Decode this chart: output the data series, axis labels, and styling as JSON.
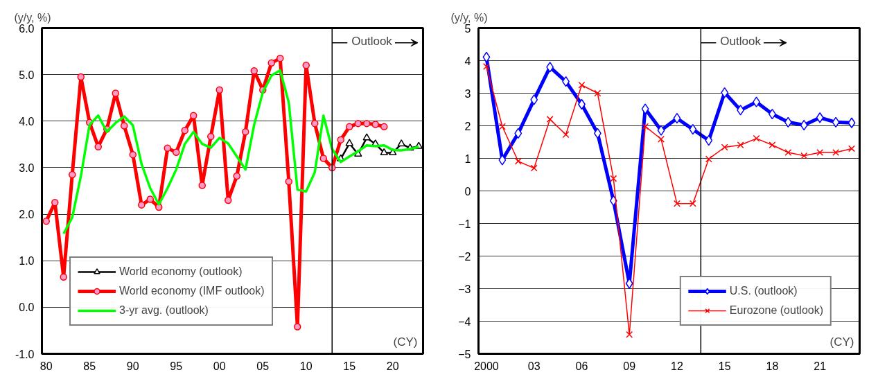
{
  "chart_data": [
    {
      "type": "line",
      "ylabel": "(y/y, %)",
      "annotations": [
        "(CY)"
      ],
      "xlim": [
        1979.5,
        2023.5
      ],
      "xticks": [
        {
          "value": 1980,
          "label": "80"
        },
        {
          "value": 1985,
          "label": "85"
        },
        {
          "value": 1990,
          "label": "90"
        },
        {
          "value": 1995,
          "label": "95"
        },
        {
          "value": 2000,
          "label": "00"
        },
        {
          "value": 2005,
          "label": "05"
        },
        {
          "value": 2010,
          "label": "10"
        },
        {
          "value": 2015,
          "label": "15"
        },
        {
          "value": 2020,
          "label": "20"
        }
      ],
      "ylim": [
        -1.0,
        6.0
      ],
      "yticks": [
        {
          "value": -1,
          "label": "-1.0"
        },
        {
          "value": 0,
          "label": "0.0"
        },
        {
          "value": 1,
          "label": "1.0"
        },
        {
          "value": 2,
          "label": "2.0"
        },
        {
          "value": 3,
          "label": "3.0"
        },
        {
          "value": 4,
          "label": "4.0"
        },
        {
          "value": 5,
          "label": "5.0"
        },
        {
          "value": 6,
          "label": "6.0"
        }
      ],
      "grid": "y",
      "legend": "bottom left",
      "ref_lines": [
        {
          "axis": "x",
          "value": 2013,
          "label": "Outlook"
        }
      ],
      "series": [
        {
          "name": "World economy (outlook)",
          "color": "#000000",
          "marker": "triangle",
          "x": [
            2014,
            2015,
            2016,
            2017,
            2018,
            2019,
            2020,
            2021,
            2022,
            2023
          ],
          "values": [
            3.19,
            3.52,
            3.29,
            3.64,
            3.51,
            3.32,
            3.32,
            3.51,
            3.42,
            3.46
          ]
        },
        {
          "name": "World economy (IMF outlook)",
          "color": "#ff0000",
          "marker": "circle",
          "x": [
            1980,
            1981,
            1982,
            1983,
            1984,
            1985,
            1986,
            1987,
            1988,
            1989,
            1990,
            1991,
            1992,
            1993,
            1994,
            1995,
            1996,
            1997,
            1998,
            1999,
            2000,
            2001,
            2002,
            2003,
            2004,
            2005,
            2006,
            2007,
            2008,
            2009,
            2010,
            2011,
            2012,
            2013,
            2014,
            2015,
            2016,
            2017,
            2018,
            2019
          ],
          "values": [
            1.85,
            2.25,
            0.65,
            2.85,
            4.95,
            3.97,
            3.45,
            3.83,
            4.6,
            3.9,
            3.28,
            2.2,
            2.32,
            2.15,
            3.42,
            3.33,
            3.8,
            4.12,
            2.62,
            3.67,
            4.67,
            2.3,
            2.82,
            3.77,
            5.08,
            4.67,
            5.25,
            5.35,
            2.7,
            -0.42,
            5.2,
            3.95,
            3.2,
            3.0,
            3.6,
            3.88,
            3.95,
            3.95,
            3.93,
            3.88
          ]
        },
        {
          "name": "3-yr avg. (outlook)",
          "color": "#00ff00",
          "marker": "none",
          "x": [
            1982,
            1983,
            1984,
            1985,
            1986,
            1987,
            1988,
            1989,
            1990,
            1991,
            1992,
            1993,
            1994,
            1995,
            1996,
            1997,
            1998,
            1999,
            2000,
            2001,
            2002,
            2003,
            2004,
            2005,
            2006,
            2007,
            2008,
            2009,
            2010,
            2011,
            2012,
            2013,
            2014,
            2015,
            2016,
            2017,
            2018,
            2019,
            2020,
            2021,
            2022,
            2023
          ],
          "values": [
            1.58,
            1.93,
            2.82,
            3.92,
            4.12,
            3.77,
            3.96,
            4.1,
            3.91,
            3.08,
            2.56,
            2.21,
            2.56,
            2.96,
            3.51,
            3.77,
            3.51,
            3.43,
            3.64,
            3.52,
            3.24,
            2.96,
            3.92,
            4.62,
            4.98,
            5.09,
            4.4,
            2.53,
            2.49,
            2.9,
            4.12,
            3.4,
            3.12,
            3.24,
            3.35,
            3.48,
            3.46,
            3.48,
            3.38,
            3.37,
            3.4,
            3.45
          ]
        }
      ]
    },
    {
      "type": "line",
      "ylabel": "(y/y, %)",
      "annotations": [
        "(CY)"
      ],
      "xlim": [
        1999.5,
        2023.5
      ],
      "xticks": [
        {
          "value": 2000,
          "label": "2000"
        },
        {
          "value": 2003,
          "label": "03"
        },
        {
          "value": 2006,
          "label": "06"
        },
        {
          "value": 2009,
          "label": "09"
        },
        {
          "value": 2012,
          "label": "12"
        },
        {
          "value": 2015,
          "label": "15"
        },
        {
          "value": 2018,
          "label": "18"
        },
        {
          "value": 2021,
          "label": "21"
        }
      ],
      "ylim": [
        -5,
        5
      ],
      "yticks": [
        -5,
        -4,
        -3,
        -2,
        -1,
        0,
        1,
        2,
        3,
        4,
        5
      ],
      "grid": "y",
      "legend": "bottom right",
      "ref_lines": [
        {
          "axis": "x",
          "value": 2013.5,
          "label": "Outlook"
        }
      ],
      "series": [
        {
          "name": "U.S. (outlook)",
          "color": "#0000ff",
          "marker": "diamond",
          "x": [
            2000,
            2001,
            2002,
            2003,
            2004,
            2005,
            2006,
            2007,
            2008,
            2009,
            2010,
            2011,
            2012,
            2013,
            2014,
            2015,
            2016,
            2017,
            2018,
            2019,
            2020,
            2021,
            2022,
            2023
          ],
          "values": [
            4.11,
            0.95,
            1.77,
            2.8,
            3.8,
            3.36,
            2.66,
            1.77,
            -0.3,
            -2.84,
            2.52,
            1.86,
            2.23,
            1.89,
            1.55,
            3.02,
            2.48,
            2.73,
            2.36,
            2.11,
            2.02,
            2.25,
            2.11,
            2.09
          ]
        },
        {
          "name": "Eurozone (outlook)",
          "color": "#ff0000",
          "marker": "cross",
          "x": [
            2000,
            2001,
            2002,
            2003,
            2004,
            2005,
            2006,
            2007,
            2008,
            2009,
            2010,
            2011,
            2012,
            2013,
            2014,
            2015,
            2016,
            2017,
            2018,
            2019,
            2020,
            2021,
            2022,
            2023
          ],
          "values": [
            3.82,
            1.98,
            0.91,
            0.7,
            2.2,
            1.73,
            3.25,
            3.0,
            0.38,
            -4.41,
            1.98,
            1.59,
            -0.39,
            -0.39,
            0.98,
            1.34,
            1.41,
            1.61,
            1.41,
            1.18,
            1.08,
            1.18,
            1.18,
            1.3
          ]
        }
      ]
    }
  ]
}
